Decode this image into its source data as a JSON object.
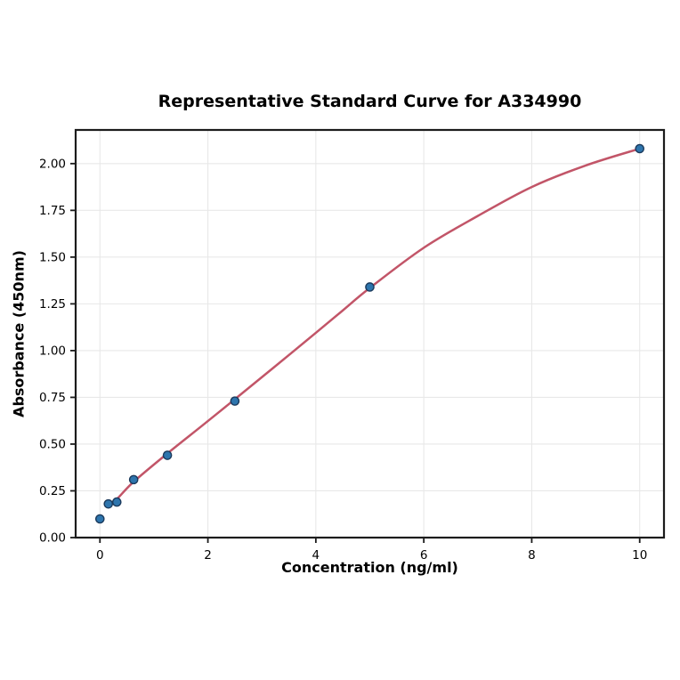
{
  "chart_data": {
    "type": "scatter",
    "title": "Representative Standard Curve for A334990",
    "xlabel": "Concentration (ng/ml)",
    "ylabel": "Absorbance (450nm)",
    "xlim": [
      -0.45,
      10.45
    ],
    "ylim": [
      0,
      2.18
    ],
    "grid": true,
    "legend": "none",
    "x_ticks": [
      0,
      2,
      4,
      6,
      8,
      10
    ],
    "x_tick_labels": [
      "0",
      "2",
      "4",
      "6",
      "8",
      "10"
    ],
    "y_ticks": [
      0.0,
      0.25,
      0.5,
      0.75,
      1.0,
      1.25,
      1.5,
      1.75,
      2.0
    ],
    "y_tick_labels": [
      "0.00",
      "0.25",
      "0.50",
      "0.75",
      "1.00",
      "1.25",
      "1.50",
      "1.75",
      "2.00"
    ],
    "series": [
      {
        "name": "standard-points",
        "type": "scatter",
        "x": [
          0,
          0.156,
          0.313,
          0.625,
          1.25,
          2.5,
          5,
          10
        ],
        "y": [
          0.1,
          0.18,
          0.19,
          0.31,
          0.44,
          0.73,
          1.34,
          2.08
        ]
      },
      {
        "name": "fit-curve",
        "type": "line",
        "points": [
          [
            0.13,
            0.165
          ],
          [
            0.31,
            0.205
          ],
          [
            0.63,
            0.3
          ],
          [
            1.25,
            0.45
          ],
          [
            1.9,
            0.6
          ],
          [
            2.5,
            0.74
          ],
          [
            3.2,
            0.905
          ],
          [
            4.0,
            1.095
          ],
          [
            4.5,
            1.215
          ],
          [
            5.0,
            1.335
          ],
          [
            6.0,
            1.55
          ],
          [
            7.0,
            1.72
          ],
          [
            8.0,
            1.875
          ],
          [
            9.0,
            1.99
          ],
          [
            10.0,
            2.08
          ]
        ]
      }
    ],
    "colors": {
      "point_fill": "#2e75ad",
      "point_edge": "#1b3a5c",
      "line": "#c25568",
      "grid": "#e8e8e8",
      "spine": "#1c1c1c",
      "text": "#000000",
      "background": "#ffffff"
    }
  }
}
